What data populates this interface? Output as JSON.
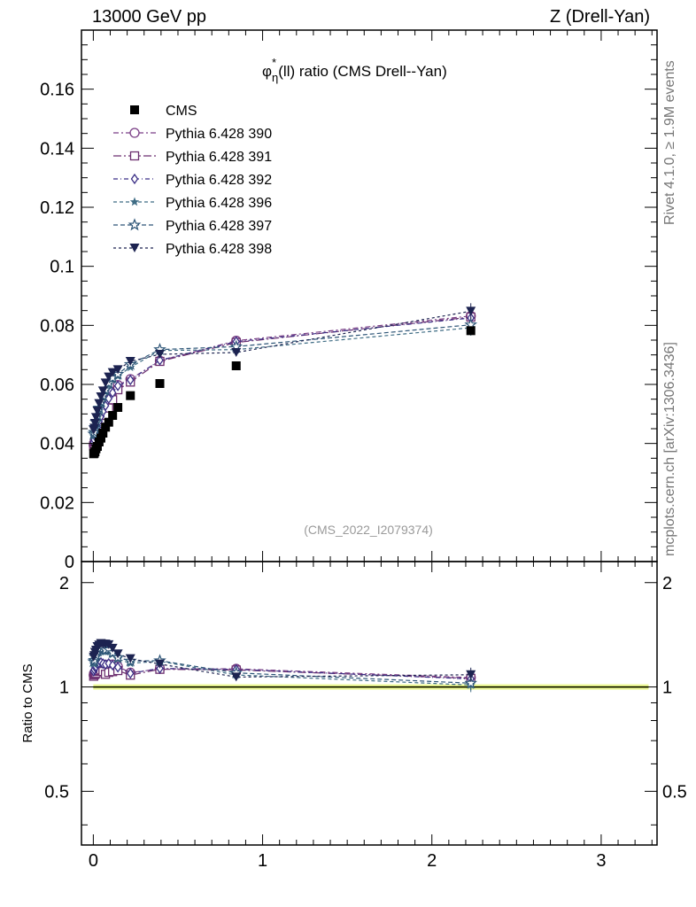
{
  "header": {
    "left": "13000 GeV pp",
    "right": "Z (Drell-Yan)"
  },
  "side_labels": {
    "rivet": "Rivet 4.1.0, ≥ 1.9M events",
    "source": "mcplots.cern.ch [arXiv:1306.3436]"
  },
  "colors": {
    "c390": "#7a3f86",
    "c391": "#6c2f6f",
    "c392": "#3b2f86",
    "c396": "#3e6c84",
    "c397": "#2d5577",
    "c398": "#1c2350",
    "band_inner": "#e3f56a",
    "band_outer": "#f3fbb8"
  },
  "chart_data": {
    "type": "scatter",
    "title": "φ*η(ll) ratio (CMS Drell--Yan)",
    "title_parts": {
      "phi": "φ",
      "star": "*",
      "eta": "η",
      "rest": "(ll) ratio (CMS Drell--Yan)"
    },
    "watermark": "(CMS_2022_I2079374)",
    "xlabel": "",
    "ylabel_main": "",
    "ylabel_ratio": "Ratio to CMS",
    "xlim": [
      -0.07,
      3.33
    ],
    "ylim_main": [
      0,
      0.18
    ],
    "ylim_ratio": [
      0.35,
      2.3
    ],
    "x_ticks": [
      0,
      1,
      2,
      3
    ],
    "x_tick_labels": [
      "0",
      "1",
      "2",
      "3"
    ],
    "y_ticks_main": [
      0,
      0.02,
      0.04,
      0.06,
      0.08,
      0.1,
      0.12,
      0.14,
      0.16
    ],
    "y_tick_labels_main": [
      "0",
      "0.02",
      "0.04",
      "0.06",
      "0.08",
      "0.1",
      "0.12",
      "0.14",
      "0.16"
    ],
    "y_ticks_ratio": [
      0.5,
      1,
      2
    ],
    "y_tick_labels_ratio": [
      "0.5",
      "1",
      "2"
    ],
    "x": [
      0.002,
      0.006,
      0.01,
      0.016,
      0.024,
      0.034,
      0.045,
      0.057,
      0.072,
      0.091,
      0.114,
      0.145,
      0.219,
      0.393,
      0.844,
      2.23
    ],
    "series": [
      {
        "name": "CMS",
        "marker": "square-filled",
        "color": "#000000",
        "values": [
          0.0365,
          0.0367,
          0.0372,
          0.0382,
          0.039,
          0.0405,
          0.0418,
          0.0435,
          0.0455,
          0.0472,
          0.0495,
          0.0522,
          0.0562,
          0.0603,
          0.0663,
          0.0782
        ]
      },
      {
        "name": "Pythia 6.428 390",
        "marker": "circle-open",
        "dash": "6,3,2,3",
        "color": "#7a3f86",
        "values": [
          0.0395,
          0.0402,
          0.0412,
          0.0428,
          0.0445,
          0.047,
          0.0488,
          0.0505,
          0.0525,
          0.0548,
          0.0575,
          0.0598,
          0.0618,
          0.068,
          0.0748,
          0.0832
        ]
      },
      {
        "name": "Pythia 6.428 391",
        "marker": "square-open",
        "dash": "9,3,2,3",
        "color": "#6c2f6f",
        "values": [
          0.0392,
          0.0398,
          0.0405,
          0.0418,
          0.0432,
          0.0452,
          0.0468,
          0.0482,
          0.0495,
          0.052,
          0.0548,
          0.0582,
          0.0608,
          0.0678,
          0.0742,
          0.0828
        ]
      },
      {
        "name": "Pythia 6.428 392",
        "marker": "diamond-open",
        "dash": "5,3,1,3",
        "color": "#3b2f86",
        "values": [
          0.0405,
          0.0412,
          0.0425,
          0.0438,
          0.0455,
          0.0475,
          0.0492,
          0.0508,
          0.0528,
          0.0552,
          0.0572,
          0.0595,
          0.0615,
          0.0682,
          0.0745,
          0.0825
        ]
      },
      {
        "name": "Pythia 6.428 396",
        "marker": "star-filled",
        "dash": "4,3",
        "color": "#3e6c84",
        "values": [
          0.0425,
          0.0432,
          0.0448,
          0.0465,
          0.0488,
          0.051,
          0.0532,
          0.0552,
          0.0575,
          0.0598,
          0.0615,
          0.0628,
          0.0658,
          0.0715,
          0.0718,
          0.0792
        ]
      },
      {
        "name": "Pythia 6.428 397",
        "marker": "star-open",
        "dash": "5,3",
        "color": "#2d5577",
        "values": [
          0.0432,
          0.0438,
          0.0455,
          0.0472,
          0.0495,
          0.052,
          0.0542,
          0.0562,
          0.0582,
          0.0605,
          0.0622,
          0.0635,
          0.0668,
          0.0718,
          0.0728,
          0.0802
        ]
      },
      {
        "name": "Pythia 6.428 398",
        "marker": "triangle-down-filled",
        "dash": "3,3",
        "color": "#1c2350",
        "values": [
          0.0445,
          0.0452,
          0.0468,
          0.0488,
          0.051,
          0.0535,
          0.0558,
          0.0578,
          0.0605,
          0.0625,
          0.064,
          0.065,
          0.0678,
          0.0702,
          0.0708,
          0.0848
        ]
      }
    ]
  }
}
